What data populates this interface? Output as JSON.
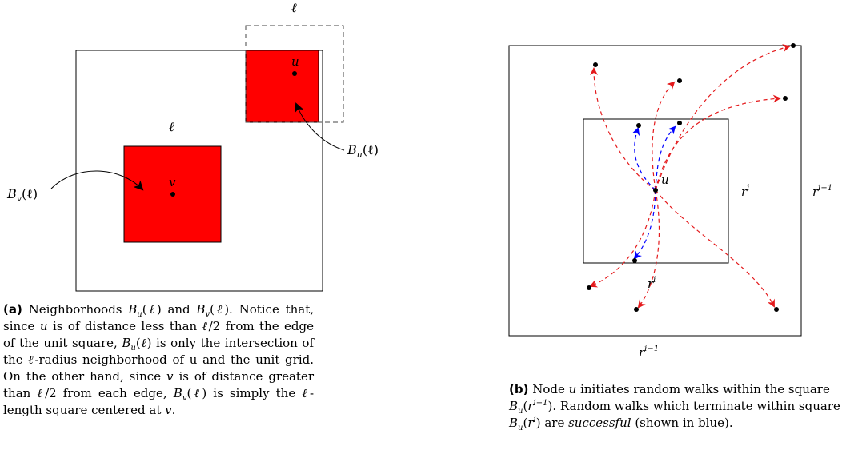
{
  "panel_a": {
    "labels": {
      "ell_top": "ℓ",
      "ell_mid": "ℓ",
      "u": "u",
      "v": "v",
      "bu": "B",
      "bu_sub": "u",
      "bu_arg": "(ℓ)",
      "bv": "B",
      "bv_sub": "v",
      "bv_arg": "(ℓ)"
    },
    "caption": {
      "tag": "(a)",
      "text": "Neighborhoods B_u(ℓ) and B_v(ℓ). Notice that, since u is of distance less than ℓ/2 from the edge of the unit square, B_u(ℓ) is only the intersection of the ℓ-radius neighborhood of u and the unit grid. On the other hand, since v is of distance greater than ℓ/2 from each edge, B_v(ℓ) is simply the ℓ-length square centered at v."
    }
  },
  "panel_b": {
    "labels": {
      "u": "u",
      "ri_right": "r",
      "ri_right_sup": "i",
      "ri_bottom": "r",
      "ri_bottom_sup": "i",
      "ri1_right": "r",
      "ri1_right_sup": "i−1",
      "ri1_bottom": "r",
      "ri1_bottom_sup": "i−1"
    },
    "caption": {
      "tag": "(b)",
      "text": "Node u initiates random walks within the square B_u(r^{i−1}). Random walks which terminate within square B_u(r^i) are successful (shown in blue)."
    }
  },
  "colors": {
    "red_fill": "#ff0000",
    "walk_red": "#e41a1c",
    "walk_blue": "#0000ff"
  }
}
